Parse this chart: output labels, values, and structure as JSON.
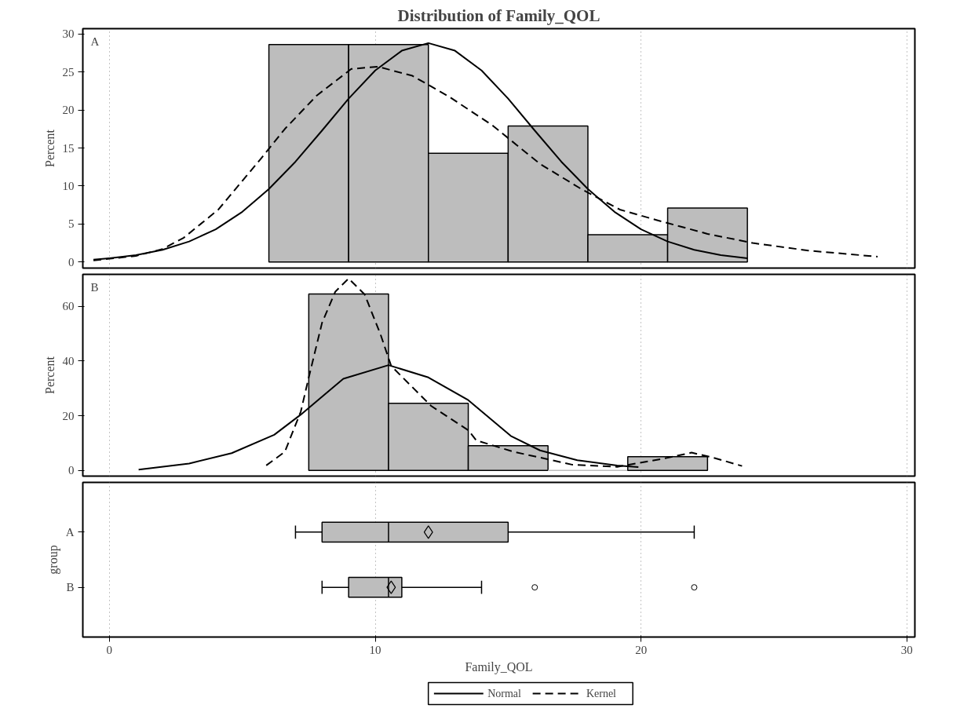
{
  "chart_data": [
    {
      "type": "histogram",
      "title": "Distribution of Family_QOL",
      "ylabel": "Percent",
      "annotations": [
        "A"
      ],
      "color": "#bdbdbd",
      "bins": [
        6,
        9,
        12,
        15,
        18,
        21,
        24
      ],
      "values": [
        28.6,
        28.6,
        14.3,
        17.9,
        3.6,
        7.1
      ],
      "xlim": [
        -1.0,
        30.3
      ],
      "xticks": [
        0,
        10,
        20,
        30
      ],
      "ylim": [
        -0.8,
        30.7
      ],
      "yticks": [
        0,
        5,
        10,
        15,
        20,
        25,
        30
      ],
      "grid": "x",
      "tick_labels": "y",
      "series": [
        {
          "type": "line",
          "line_style": "solid",
          "color": "#000000",
          "x": [
            -0.6,
            0,
            1,
            2,
            3,
            4,
            5,
            6,
            7,
            8,
            9,
            10,
            11,
            12,
            13,
            14,
            15,
            16,
            17,
            18,
            19,
            20,
            21,
            22,
            23,
            24
          ],
          "values": [
            0.3,
            0.5,
            0.9,
            1.6,
            2.7,
            4.3,
            6.6,
            9.6,
            13.2,
            17.3,
            21.5,
            25.2,
            27.8,
            28.8,
            27.8,
            25.2,
            21.5,
            17.3,
            13.2,
            9.6,
            6.6,
            4.3,
            2.7,
            1.6,
            0.9,
            0.5
          ]
        },
        {
          "type": "line",
          "line_style": "dashed",
          "color": "#000000",
          "x": [
            -0.6,
            1,
            2,
            2.8,
            4.1,
            5.7,
            6.6,
            7.8,
            9.1,
            10.1,
            11.4,
            12.8,
            14.4,
            16.2,
            17.8,
            19.2,
            20.6,
            22.5,
            24.2,
            26.3,
            28.9
          ],
          "values": [
            0.2,
            0.8,
            1.7,
            3.2,
            6.9,
            13.6,
            17.5,
            21.9,
            25.4,
            25.7,
            24.5,
            21.7,
            18,
            12.9,
            9.5,
            6.9,
            5.5,
            3.7,
            2.5,
            1.5,
            0.7
          ]
        }
      ]
    },
    {
      "type": "histogram",
      "ylabel": "Percent",
      "annotations": [
        "B"
      ],
      "color": "#bdbdbd",
      "bins": [
        7.5,
        10.5,
        13.5,
        16.5,
        19.5,
        22.5
      ],
      "values": [
        64.5,
        24.5,
        9,
        0,
        5
      ],
      "xlim": [
        -1.0,
        30.3
      ],
      "xticks": [
        0,
        10,
        20,
        30
      ],
      "ylim": [
        -2.1,
        71.7
      ],
      "yticks": [
        0,
        20,
        40,
        60
      ],
      "grid": "x",
      "tick_labels": "y",
      "legend": "bottom",
      "series": [
        {
          "name": "Normal",
          "type": "line",
          "line_style": "solid",
          "color": "#000000",
          "x": [
            1.1,
            3,
            4.6,
            6.2,
            7.2,
            8.8,
            10.5,
            12,
            13.5,
            15.1,
            16.2,
            17.6,
            19.1,
            19.9
          ],
          "values": [
            0.3,
            2.5,
            6.3,
            13,
            20.4,
            33.5,
            38.5,
            34,
            25.7,
            12.6,
            7.3,
            3.7,
            1.8,
            1.2
          ]
        },
        {
          "name": "Kernel",
          "type": "line",
          "line_style": "dashed",
          "color": "#000000",
          "x": [
            5.9,
            6.6,
            7.2,
            7.5,
            8,
            8.5,
            9,
            9.6,
            10.2,
            10.6,
            12.1,
            13.5,
            13.8,
            15.2,
            16.2,
            17.4,
            19.1,
            20.8,
            21.9,
            22.7,
            23.8
          ],
          "values": [
            1.8,
            6.8,
            21.5,
            34,
            54,
            65.4,
            70.2,
            64.4,
            49.7,
            38.2,
            23.6,
            14.7,
            11,
            6.8,
            4.7,
            2.1,
            1.3,
            4.2,
            6.5,
            4.7,
            1.6
          ]
        }
      ]
    },
    {
      "type": "box",
      "orientation": "horizontal",
      "xlabel": "Family_QOL",
      "ylabel": "group",
      "color": "#bdbdbd",
      "categories": [
        "A",
        "B"
      ],
      "boxes": [
        {
          "low": 7,
          "q1": 8,
          "median": 10.5,
          "q3": 15,
          "high": 22,
          "mean": 12
        },
        {
          "low": 8,
          "q1": 9,
          "median": 10.5,
          "q3": 11,
          "high": 14,
          "mean": 10.6,
          "outliers": [
            16,
            22
          ]
        }
      ],
      "xlim": [
        -1.0,
        30.3
      ],
      "xticks": [
        0,
        10,
        20,
        30
      ],
      "grid": "x"
    }
  ]
}
